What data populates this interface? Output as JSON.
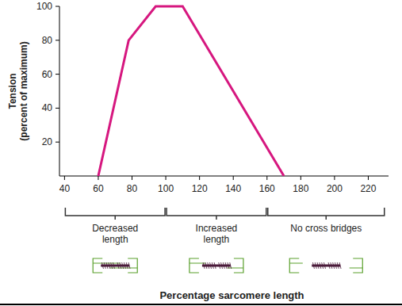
{
  "chart_data": {
    "type": "line",
    "x_label": "Percentage sarcomere length",
    "y_label": [
      "Tension",
      "(percent of maximum)"
    ],
    "x": [
      60,
      78,
      94,
      110,
      170
    ],
    "series": [
      {
        "name": "Tension",
        "color": "#d6177f",
        "values": [
          0,
          80,
          100,
          100,
          0
        ]
      }
    ],
    "xlim": [
      37,
      232
    ],
    "xticks": [
      40,
      60,
      80,
      100,
      120,
      140,
      160,
      180,
      200,
      220
    ],
    "ylim": [
      0,
      100
    ],
    "yticks": [
      20,
      40,
      60,
      80,
      100
    ],
    "grid": false,
    "regions": [
      {
        "label": [
          "Decreased",
          "length"
        ],
        "from": 40,
        "to": 100
      },
      {
        "label": [
          "Increased",
          "length"
        ],
        "from": 100,
        "to": 160
      },
      {
        "label": [
          "No cross bridges"
        ],
        "from": 160,
        "to": 230
      }
    ]
  }
}
